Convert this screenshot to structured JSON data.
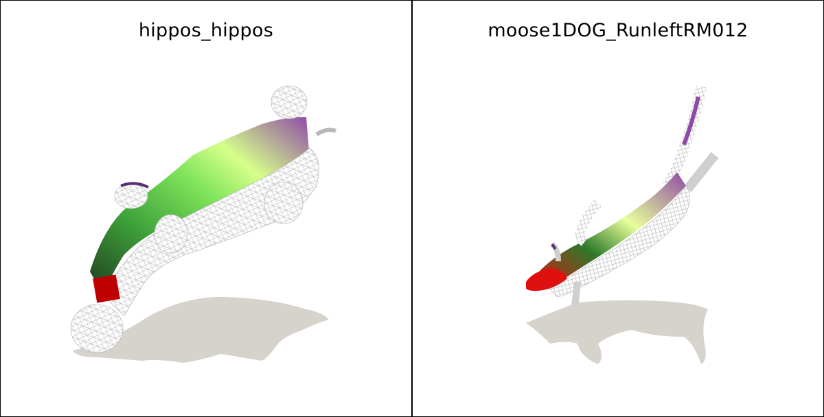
{
  "panels": [
    {
      "title": "hippos_hippos",
      "render_icon": "hippo-mesh-render"
    },
    {
      "title": "moose1DOG_RunleftRM012",
      "render_icon": "moose-mesh-render"
    }
  ],
  "colors": {
    "shadow": "#d6d3cc",
    "mesh": "#cfcfcf",
    "accent_green": "#9cf56a",
    "accent_purple": "#8e4aa6",
    "accent_red": "#e01010",
    "border": "#000000"
  }
}
